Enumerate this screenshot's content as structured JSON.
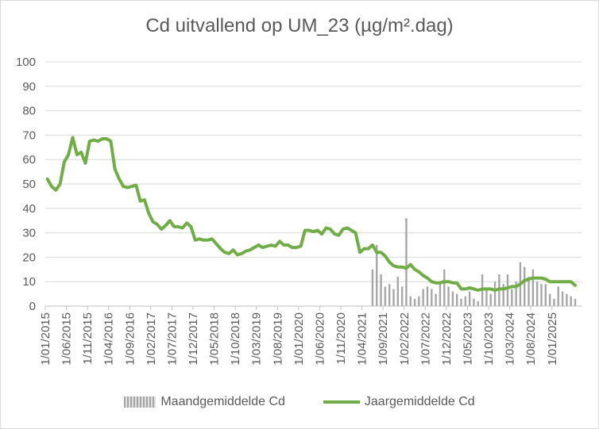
{
  "chart_data": {
    "type": "bar+line",
    "title": "Cd uitvallend op UM_23 (µg/m².dag)",
    "ylim": [
      0,
      100
    ],
    "yticks": [
      "0",
      "10",
      "20",
      "30",
      "40",
      "50",
      "60",
      "70",
      "80",
      "90",
      "100"
    ],
    "xticks": [
      "1/01/2015",
      "1/06/2015",
      "1/11/2015",
      "1/04/2016",
      "1/09/2016",
      "1/02/2017",
      "1/07/2017",
      "1/12/2017",
      "1/05/2018",
      "1/10/2018",
      "1/03/2019",
      "1/08/2019",
      "1/01/2020",
      "1/06/2020",
      "1/11/2020",
      "1/04/2021",
      "1/09/2021",
      "1/02/2022",
      "1/07/2022",
      "1/12/2022",
      "1/05/2023",
      "1/10/2023",
      "1/03/2024",
      "1/08/2024",
      "1/01/2025"
    ],
    "x_range": [
      "2015-01",
      "2025-07"
    ],
    "series": [
      {
        "name": "Maandgemiddelde Cd",
        "kind": "bar",
        "color": "#a6a6a6",
        "data": [
          [
            "2021-06",
            15
          ],
          [
            "2021-07",
            25
          ],
          [
            "2021-08",
            13
          ],
          [
            "2021-09",
            8
          ],
          [
            "2021-10",
            9
          ],
          [
            "2021-11",
            7
          ],
          [
            "2021-12",
            12
          ],
          [
            "2022-01",
            8
          ],
          [
            "2022-02",
            36
          ],
          [
            "2022-03",
            4
          ],
          [
            "2022-04",
            3
          ],
          [
            "2022-05",
            4
          ],
          [
            "2022-06",
            7
          ],
          [
            "2022-07",
            8
          ],
          [
            "2022-08",
            7
          ],
          [
            "2022-09",
            5
          ],
          [
            "2022-10",
            10
          ],
          [
            "2022-11",
            15
          ],
          [
            "2022-12",
            8
          ],
          [
            "2023-01",
            6
          ],
          [
            "2023-02",
            5
          ],
          [
            "2023-03",
            3
          ],
          [
            "2023-04",
            4
          ],
          [
            "2023-05",
            6
          ],
          [
            "2023-06",
            3
          ],
          [
            "2023-07",
            2
          ],
          [
            "2023-08",
            13
          ],
          [
            "2023-09",
            7
          ],
          [
            "2023-10",
            5
          ],
          [
            "2023-11",
            10
          ],
          [
            "2023-12",
            13
          ],
          [
            "2024-01",
            9
          ],
          [
            "2024-02",
            13
          ],
          [
            "2024-03",
            7
          ],
          [
            "2024-04",
            10
          ],
          [
            "2024-05",
            18
          ],
          [
            "2024-06",
            16
          ],
          [
            "2024-07",
            12
          ],
          [
            "2024-08",
            15
          ],
          [
            "2024-09",
            10
          ],
          [
            "2024-10",
            9
          ],
          [
            "2024-11",
            9
          ],
          [
            "2024-12",
            5
          ],
          [
            "2025-01",
            3
          ],
          [
            "2025-02",
            8
          ],
          [
            "2025-03",
            6
          ],
          [
            "2025-04",
            5
          ],
          [
            "2025-05",
            4
          ],
          [
            "2025-06",
            3
          ]
        ]
      },
      {
        "name": "Jaargemiddelde Cd",
        "kind": "line",
        "color": "#70ad47",
        "data": [
          [
            "2015-01",
            52
          ],
          [
            "2015-02",
            49
          ],
          [
            "2015-03",
            47.5
          ],
          [
            "2015-04",
            50
          ],
          [
            "2015-05",
            59
          ],
          [
            "2015-06",
            62
          ],
          [
            "2015-07",
            69
          ],
          [
            "2015-08",
            62
          ],
          [
            "2015-09",
            63
          ],
          [
            "2015-10",
            58.5
          ],
          [
            "2015-11",
            67.5
          ],
          [
            "2015-12",
            68
          ],
          [
            "2016-01",
            67.5
          ],
          [
            "2016-02",
            68.5
          ],
          [
            "2016-03",
            68.5
          ],
          [
            "2016-04",
            67.5
          ],
          [
            "2016-05",
            56
          ],
          [
            "2016-06",
            52
          ],
          [
            "2016-07",
            49
          ],
          [
            "2016-08",
            48.5
          ],
          [
            "2016-09",
            49
          ],
          [
            "2016-10",
            49.5
          ],
          [
            "2016-11",
            43
          ],
          [
            "2016-12",
            43.5
          ],
          [
            "2017-01",
            38
          ],
          [
            "2017-02",
            34.5
          ],
          [
            "2017-03",
            33.5
          ],
          [
            "2017-04",
            31.5
          ],
          [
            "2017-05",
            33
          ],
          [
            "2017-06",
            35
          ],
          [
            "2017-07",
            32.5
          ],
          [
            "2017-08",
            32.5
          ],
          [
            "2017-09",
            32
          ],
          [
            "2017-10",
            34
          ],
          [
            "2017-11",
            32.5
          ],
          [
            "2017-12",
            27
          ],
          [
            "2018-01",
            27.5
          ],
          [
            "2018-02",
            27
          ],
          [
            "2018-03",
            27
          ],
          [
            "2018-04",
            27.5
          ],
          [
            "2018-05",
            25.5
          ],
          [
            "2018-06",
            23.5
          ],
          [
            "2018-07",
            22
          ],
          [
            "2018-08",
            21.5
          ],
          [
            "2018-09",
            23
          ],
          [
            "2018-10",
            21
          ],
          [
            "2018-11",
            21.5
          ],
          [
            "2018-12",
            22.5
          ],
          [
            "2019-01",
            23
          ],
          [
            "2019-02",
            24
          ],
          [
            "2019-03",
            25
          ],
          [
            "2019-04",
            24
          ],
          [
            "2019-05",
            24.5
          ],
          [
            "2019-06",
            25
          ],
          [
            "2019-07",
            24.5
          ],
          [
            "2019-08",
            26.5
          ],
          [
            "2019-09",
            25
          ],
          [
            "2019-10",
            25
          ],
          [
            "2019-11",
            24
          ],
          [
            "2019-12",
            24
          ],
          [
            "2020-01",
            24.5
          ],
          [
            "2020-02",
            31
          ],
          [
            "2020-03",
            31
          ],
          [
            "2020-04",
            30.5
          ],
          [
            "2020-05",
            31
          ],
          [
            "2020-06",
            29.5
          ],
          [
            "2020-07",
            32
          ],
          [
            "2020-08",
            31.5
          ],
          [
            "2020-09",
            29.5
          ],
          [
            "2020-10",
            29
          ],
          [
            "2020-11",
            31.5
          ],
          [
            "2020-12",
            32
          ],
          [
            "2021-01",
            31
          ],
          [
            "2021-02",
            30
          ],
          [
            "2021-03",
            22
          ],
          [
            "2021-04",
            23.5
          ],
          [
            "2021-05",
            23.5
          ],
          [
            "2021-06",
            25
          ],
          [
            "2021-07",
            22
          ],
          [
            "2021-08",
            22
          ],
          [
            "2021-09",
            20.5
          ],
          [
            "2021-10",
            18
          ],
          [
            "2021-11",
            16.5
          ],
          [
            "2021-12",
            16
          ],
          [
            "2022-01",
            16
          ],
          [
            "2022-02",
            15.5
          ],
          [
            "2022-03",
            17
          ],
          [
            "2022-04",
            15
          ],
          [
            "2022-05",
            14
          ],
          [
            "2022-06",
            12.5
          ],
          [
            "2022-07",
            11.5
          ],
          [
            "2022-08",
            10
          ],
          [
            "2022-09",
            9.5
          ],
          [
            "2022-10",
            9.5
          ],
          [
            "2022-11",
            10
          ],
          [
            "2022-12",
            10
          ],
          [
            "2023-01",
            9.5
          ],
          [
            "2023-02",
            9.5
          ],
          [
            "2023-03",
            7
          ],
          [
            "2023-04",
            7
          ],
          [
            "2023-05",
            7.5
          ],
          [
            "2023-06",
            7
          ],
          [
            "2023-07",
            6.5
          ],
          [
            "2023-08",
            7
          ],
          [
            "2023-09",
            7
          ],
          [
            "2023-10",
            7
          ],
          [
            "2023-11",
            6.5
          ],
          [
            "2023-12",
            7
          ],
          [
            "2024-01",
            7
          ],
          [
            "2024-02",
            7.5
          ],
          [
            "2024-03",
            8
          ],
          [
            "2024-04",
            8
          ],
          [
            "2024-05",
            9
          ],
          [
            "2024-06",
            10.5
          ],
          [
            "2024-07",
            11
          ],
          [
            "2024-08",
            11.5
          ],
          [
            "2024-09",
            11.5
          ],
          [
            "2024-10",
            11.5
          ],
          [
            "2024-11",
            11
          ],
          [
            "2024-12",
            10
          ],
          [
            "2025-01",
            10
          ],
          [
            "2025-02",
            10
          ],
          [
            "2025-03",
            10
          ],
          [
            "2025-04",
            10
          ],
          [
            "2025-05",
            10
          ],
          [
            "2025-06",
            8.5
          ]
        ]
      }
    ],
    "grid": true,
    "legend": "bottom"
  }
}
